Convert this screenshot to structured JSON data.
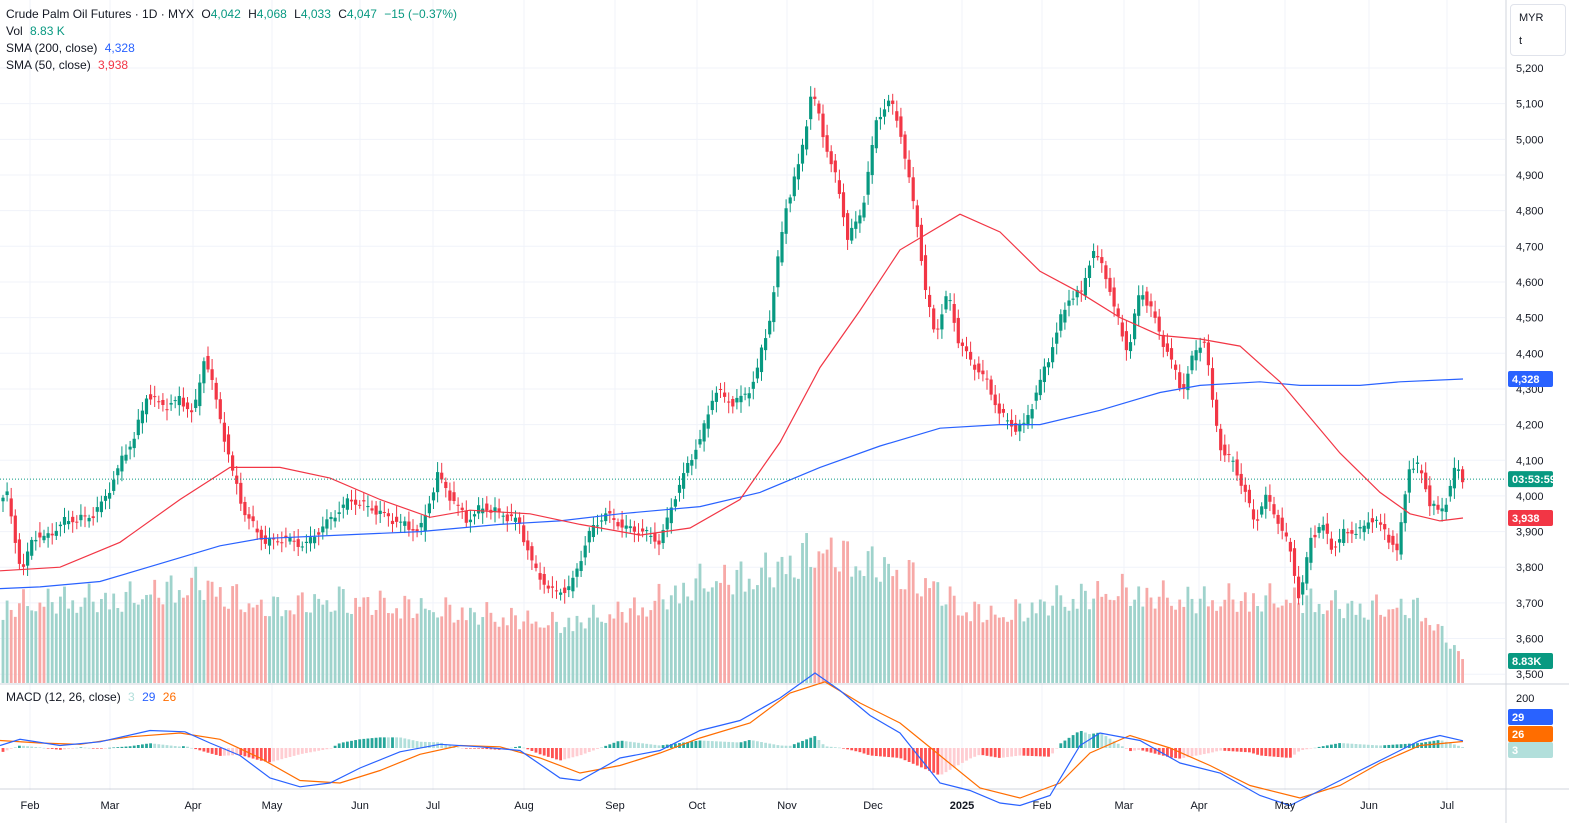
{
  "header": {
    "symbol": "Crude Palm Oil Futures · 1D · MYX",
    "o_label": "O",
    "o": "4,042",
    "h_label": "H",
    "h": "4,068",
    "l_label": "L",
    "l": "4,033",
    "c_label": "C",
    "c": "4,047",
    "change": "−15 (−0.37%)"
  },
  "vol_legend": {
    "label": "Vol",
    "value": "8.83 K"
  },
  "sma200_legend": {
    "label": "SMA (200, close)",
    "value": "4,328"
  },
  "sma50_legend": {
    "label": "SMA (50, close)",
    "value": "3,938"
  },
  "macd_legend": {
    "label": "MACD (12, 26, close)",
    "hist": "3",
    "macd": "29",
    "signal": "26"
  },
  "unit_box": {
    "currency": "MYR",
    "mode": "t"
  },
  "tags": {
    "sma200": "4,328",
    "countdown": "03:53:59",
    "sma50": "3,938",
    "volume": "8.83K",
    "macd": "29",
    "signal": "26",
    "hist": "3"
  },
  "colors": {
    "up": "#089981",
    "down": "#f23645",
    "vol_up": "#9fd3cc",
    "vol_down": "#f7a9a7",
    "sma200": "#2962ff",
    "sma50": "#f23645",
    "macd_line": "#2962ff",
    "signal_line": "#ff6d00",
    "hist_pos_strong": "#26a69a",
    "hist_pos_weak": "#b2dfdb",
    "hist_neg_strong": "#ff5252",
    "hist_neg_weak": "#ffcdd2"
  },
  "chart_data": [
    {
      "type": "candlestick",
      "title": "Crude Palm Oil Futures · 1D · MYX",
      "currency": "MYR",
      "y_ticks": [
        3500,
        3600,
        3700,
        3800,
        3900,
        4000,
        4100,
        4200,
        4300,
        4400,
        4500,
        4600,
        4700,
        4800,
        4900,
        5000,
        5100,
        5200
      ],
      "x_ticks": [
        "Feb",
        "Mar",
        "Apr",
        "May",
        "Jun",
        "Jul",
        "Aug",
        "Sep",
        "Oct",
        "Nov",
        "Dec",
        "2025",
        "Feb",
        "Mar",
        "Apr",
        "May",
        "Jun",
        "Jul"
      ],
      "close_path": [
        [
          0,
          3970
        ],
        [
          6,
          4020
        ],
        [
          15,
          3880
        ],
        [
          22,
          3780
        ],
        [
          33,
          3890
        ],
        [
          45,
          3880
        ],
        [
          65,
          3930
        ],
        [
          90,
          3940
        ],
        [
          105,
          3990
        ],
        [
          120,
          4090
        ],
        [
          135,
          4170
        ],
        [
          148,
          4290
        ],
        [
          162,
          4250
        ],
        [
          180,
          4270
        ],
        [
          194,
          4230
        ],
        [
          205,
          4400
        ],
        [
          215,
          4280
        ],
        [
          224,
          4170
        ],
        [
          232,
          4070
        ],
        [
          245,
          3950
        ],
        [
          265,
          3870
        ],
        [
          285,
          3880
        ],
        [
          305,
          3860
        ],
        [
          325,
          3920
        ],
        [
          350,
          3990
        ],
        [
          375,
          3960
        ],
        [
          395,
          3930
        ],
        [
          420,
          3900
        ],
        [
          438,
          4060
        ],
        [
          452,
          3990
        ],
        [
          468,
          3930
        ],
        [
          482,
          3970
        ],
        [
          500,
          3950
        ],
        [
          518,
          3930
        ],
        [
          535,
          3790
        ],
        [
          552,
          3730
        ],
        [
          570,
          3740
        ],
        [
          590,
          3900
        ],
        [
          605,
          3950
        ],
        [
          625,
          3910
        ],
        [
          643,
          3900
        ],
        [
          660,
          3870
        ],
        [
          675,
          4000
        ],
        [
          690,
          4100
        ],
        [
          702,
          4170
        ],
        [
          715,
          4300
        ],
        [
          730,
          4260
        ],
        [
          745,
          4280
        ],
        [
          755,
          4330
        ],
        [
          770,
          4500
        ],
        [
          785,
          4800
        ],
        [
          800,
          4940
        ],
        [
          812,
          5140
        ],
        [
          828,
          4960
        ],
        [
          838,
          4870
        ],
        [
          848,
          4720
        ],
        [
          862,
          4800
        ],
        [
          877,
          5060
        ],
        [
          890,
          5110
        ],
        [
          900,
          5030
        ],
        [
          908,
          4900
        ],
        [
          918,
          4750
        ],
        [
          925,
          4580
        ],
        [
          935,
          4450
        ],
        [
          948,
          4570
        ],
        [
          958,
          4440
        ],
        [
          970,
          4380
        ],
        [
          985,
          4330
        ],
        [
          1000,
          4230
        ],
        [
          1015,
          4190
        ],
        [
          1025,
          4200
        ],
        [
          1035,
          4280
        ],
        [
          1048,
          4380
        ],
        [
          1060,
          4490
        ],
        [
          1070,
          4560
        ],
        [
          1082,
          4570
        ],
        [
          1092,
          4690
        ],
        [
          1105,
          4630
        ],
        [
          1115,
          4520
        ],
        [
          1128,
          4400
        ],
        [
          1140,
          4580
        ],
        [
          1152,
          4520
        ],
        [
          1160,
          4450
        ],
        [
          1170,
          4390
        ],
        [
          1182,
          4290
        ],
        [
          1194,
          4400
        ],
        [
          1205,
          4440
        ],
        [
          1213,
          4250
        ],
        [
          1222,
          4120
        ],
        [
          1232,
          4100
        ],
        [
          1245,
          4010
        ],
        [
          1255,
          3920
        ],
        [
          1265,
          4000
        ],
        [
          1275,
          3950
        ],
        [
          1290,
          3850
        ],
        [
          1300,
          3700
        ],
        [
          1310,
          3880
        ],
        [
          1322,
          3920
        ],
        [
          1333,
          3850
        ],
        [
          1345,
          3900
        ],
        [
          1360,
          3900
        ],
        [
          1372,
          3940
        ],
        [
          1385,
          3900
        ],
        [
          1398,
          3840
        ],
        [
          1408,
          4080
        ],
        [
          1420,
          4080
        ],
        [
          1430,
          3980
        ],
        [
          1440,
          3950
        ],
        [
          1448,
          4000
        ],
        [
          1455,
          4080
        ],
        [
          1463,
          4047
        ]
      ]
    },
    {
      "type": "line",
      "name": "SMA (200, close)",
      "path": [
        [
          0,
          3740
        ],
        [
          40,
          3745
        ],
        [
          100,
          3760
        ],
        [
          160,
          3810
        ],
        [
          220,
          3860
        ],
        [
          260,
          3880
        ],
        [
          340,
          3890
        ],
        [
          420,
          3900
        ],
        [
          500,
          3920
        ],
        [
          560,
          3930
        ],
        [
          620,
          3950
        ],
        [
          700,
          3970
        ],
        [
          760,
          4010
        ],
        [
          820,
          4080
        ],
        [
          880,
          4140
        ],
        [
          940,
          4190
        ],
        [
          1000,
          4200
        ],
        [
          1040,
          4200
        ],
        [
          1100,
          4240
        ],
        [
          1160,
          4290
        ],
        [
          1200,
          4310
        ],
        [
          1260,
          4320
        ],
        [
          1300,
          4310
        ],
        [
          1360,
          4310
        ],
        [
          1400,
          4320
        ],
        [
          1463,
          4328
        ]
      ]
    },
    {
      "type": "line",
      "name": "SMA (50, close)",
      "path": [
        [
          0,
          3790
        ],
        [
          60,
          3800
        ],
        [
          120,
          3870
        ],
        [
          180,
          3990
        ],
        [
          230,
          4080
        ],
        [
          280,
          4080
        ],
        [
          330,
          4050
        ],
        [
          380,
          3990
        ],
        [
          430,
          3940
        ],
        [
          470,
          3960
        ],
        [
          530,
          3950
        ],
        [
          580,
          3920
        ],
        [
          640,
          3890
        ],
        [
          690,
          3910
        ],
        [
          740,
          3990
        ],
        [
          780,
          4150
        ],
        [
          820,
          4360
        ],
        [
          860,
          4520
        ],
        [
          900,
          4690
        ],
        [
          960,
          4790
        ],
        [
          1000,
          4740
        ],
        [
          1040,
          4630
        ],
        [
          1080,
          4570
        ],
        [
          1120,
          4500
        ],
        [
          1160,
          4450
        ],
        [
          1200,
          4440
        ],
        [
          1240,
          4420
        ],
        [
          1280,
          4320
        ],
        [
          1340,
          4120
        ],
        [
          1380,
          4010
        ],
        [
          1410,
          3950
        ],
        [
          1440,
          3930
        ],
        [
          1463,
          3938
        ]
      ]
    },
    {
      "type": "bar",
      "name": "Vol",
      "last": "8.83K",
      "shape": [
        [
          0,
          0.45
        ],
        [
          60,
          0.5
        ],
        [
          120,
          0.5
        ],
        [
          200,
          0.6
        ],
        [
          260,
          0.45
        ],
        [
          340,
          0.5
        ],
        [
          420,
          0.45
        ],
        [
          500,
          0.4
        ],
        [
          560,
          0.35
        ],
        [
          640,
          0.45
        ],
        [
          700,
          0.6
        ],
        [
          760,
          0.65
        ],
        [
          820,
          0.8
        ],
        [
          880,
          0.7
        ],
        [
          930,
          0.6
        ],
        [
          960,
          0.45
        ],
        [
          1000,
          0.4
        ],
        [
          1060,
          0.5
        ],
        [
          1120,
          0.55
        ],
        [
          1180,
          0.5
        ],
        [
          1240,
          0.5
        ],
        [
          1300,
          0.5
        ],
        [
          1360,
          0.45
        ],
        [
          1420,
          0.45
        ],
        [
          1463,
          0.15
        ]
      ]
    },
    {
      "type": "line",
      "name": "MACD (12, 26, close)",
      "y_ticks": [
        200
      ],
      "macd_path": [
        [
          0,
          10
        ],
        [
          20,
          35
        ],
        [
          60,
          10
        ],
        [
          100,
          25
        ],
        [
          150,
          70
        ],
        [
          185,
          65
        ],
        [
          210,
          20
        ],
        [
          240,
          -30
        ],
        [
          270,
          -120
        ],
        [
          300,
          -155
        ],
        [
          330,
          -140
        ],
        [
          360,
          -80
        ],
        [
          400,
          -15
        ],
        [
          440,
          15
        ],
        [
          480,
          5
        ],
        [
          520,
          -10
        ],
        [
          560,
          -120
        ],
        [
          580,
          -130
        ],
        [
          620,
          -40
        ],
        [
          660,
          -10
        ],
        [
          700,
          70
        ],
        [
          740,
          110
        ],
        [
          780,
          200
        ],
        [
          815,
          300
        ],
        [
          840,
          230
        ],
        [
          870,
          130
        ],
        [
          900,
          60
        ],
        [
          920,
          -40
        ],
        [
          940,
          -140
        ],
        [
          970,
          -170
        ],
        [
          1000,
          -220
        ],
        [
          1020,
          -230
        ],
        [
          1050,
          -190
        ],
        [
          1080,
          10
        ],
        [
          1100,
          60
        ],
        [
          1140,
          30
        ],
        [
          1180,
          -60
        ],
        [
          1220,
          -100
        ],
        [
          1260,
          -190
        ],
        [
          1290,
          -230
        ],
        [
          1320,
          -170
        ],
        [
          1350,
          -110
        ],
        [
          1390,
          -30
        ],
        [
          1420,
          30
        ],
        [
          1440,
          50
        ],
        [
          1463,
          29
        ]
      ],
      "signal_path": [
        [
          0,
          30
        ],
        [
          40,
          20
        ],
        [
          80,
          15
        ],
        [
          130,
          45
        ],
        [
          180,
          60
        ],
        [
          220,
          35
        ],
        [
          260,
          -40
        ],
        [
          300,
          -130
        ],
        [
          340,
          -140
        ],
        [
          380,
          -90
        ],
        [
          420,
          -25
        ],
        [
          460,
          10
        ],
        [
          500,
          5
        ],
        [
          540,
          -40
        ],
        [
          580,
          -100
        ],
        [
          620,
          -70
        ],
        [
          660,
          -20
        ],
        [
          700,
          40
        ],
        [
          750,
          100
        ],
        [
          790,
          220
        ],
        [
          825,
          265
        ],
        [
          860,
          180
        ],
        [
          900,
          100
        ],
        [
          940,
          -30
        ],
        [
          980,
          -160
        ],
        [
          1020,
          -200
        ],
        [
          1060,
          -140
        ],
        [
          1090,
          -20
        ],
        [
          1130,
          50
        ],
        [
          1170,
          0
        ],
        [
          1210,
          -70
        ],
        [
          1250,
          -150
        ],
        [
          1300,
          -200
        ],
        [
          1340,
          -150
        ],
        [
          1380,
          -60
        ],
        [
          1420,
          10
        ],
        [
          1463,
          26
        ]
      ],
      "last": {
        "hist": 3,
        "macd": 29,
        "signal": 26
      }
    }
  ]
}
